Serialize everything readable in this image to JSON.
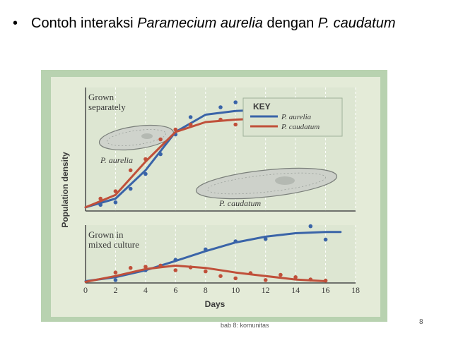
{
  "slide": {
    "bullet_glyph": "•",
    "title_prefix": "Contoh interaksi ",
    "title_species_a": "Paramecium aurelia",
    "title_middle": " dengan ",
    "title_species_b": "P. caudatum",
    "footer": "bab 8: komunitas",
    "page_number": "8"
  },
  "colors": {
    "panel_background": "#b8d2b0",
    "panel_inner": "#e4ebd8",
    "grid": "#ffffff",
    "aurelia": "#3a64a8",
    "caudatum": "#c0503a",
    "text": "#3a3a3a"
  },
  "chart_data": [
    {
      "type": "line",
      "panel_label": [
        "Grown",
        "separately"
      ],
      "ylabel": "Population density",
      "xlim": [
        0,
        18
      ],
      "legend": {
        "title": "KEY",
        "placement": "top-right",
        "entries": [
          "P. aurelia",
          "P. caudatum"
        ]
      },
      "image_labels": [
        "P. aurelia",
        "P. caudatum"
      ],
      "series": [
        {
          "name": "P. aurelia",
          "color": "#3a64a8",
          "x": [
            0,
            2,
            4,
            6,
            8,
            10,
            12,
            14,
            16,
            17
          ],
          "y": [
            0.03,
            0.1,
            0.33,
            0.64,
            0.78,
            0.81,
            0.82,
            0.82,
            0.82,
            0.82
          ],
          "points": [
            [
              1,
              0.05
            ],
            [
              2,
              0.07
            ],
            [
              3,
              0.18
            ],
            [
              4,
              0.3
            ],
            [
              5,
              0.46
            ],
            [
              6,
              0.62
            ],
            [
              7,
              0.76
            ],
            [
              9,
              0.84
            ],
            [
              10,
              0.88
            ],
            [
              11,
              0.8
            ],
            [
              13,
              0.86
            ],
            [
              14,
              0.9
            ],
            [
              15,
              0.86
            ],
            [
              16,
              0.88
            ]
          ]
        },
        {
          "name": "P. caudatum",
          "color": "#c0503a",
          "x": [
            0,
            2,
            4,
            6,
            8,
            10,
            12,
            14,
            16,
            17
          ],
          "y": [
            0.03,
            0.13,
            0.4,
            0.64,
            0.72,
            0.74,
            0.75,
            0.75,
            0.75,
            0.75
          ],
          "points": [
            [
              1,
              0.1
            ],
            [
              2,
              0.16
            ],
            [
              3,
              0.33
            ],
            [
              4,
              0.42
            ],
            [
              5,
              0.58
            ],
            [
              6,
              0.66
            ],
            [
              7,
              0.7
            ],
            [
              9,
              0.74
            ],
            [
              10,
              0.7
            ],
            [
              11,
              0.72
            ],
            [
              12,
              0.76
            ],
            [
              13,
              0.7
            ],
            [
              14,
              0.74
            ],
            [
              15,
              0.76
            ],
            [
              16,
              0.72
            ]
          ]
        }
      ]
    },
    {
      "type": "line",
      "panel_label": [
        "Grown in",
        "mixed culture"
      ],
      "xlabel": "Days",
      "xlim": [
        0,
        18
      ],
      "x_ticks": [
        0,
        2,
        4,
        6,
        8,
        10,
        12,
        14,
        16,
        18
      ],
      "series": [
        {
          "name": "P. aurelia",
          "color": "#3a64a8",
          "x": [
            0,
            2,
            4,
            6,
            8,
            10,
            12,
            14,
            16,
            17
          ],
          "y": [
            0.03,
            0.1,
            0.22,
            0.38,
            0.55,
            0.7,
            0.8,
            0.86,
            0.88,
            0.88
          ],
          "points": [
            [
              2,
              0.05
            ],
            [
              4,
              0.22
            ],
            [
              6,
              0.4
            ],
            [
              8,
              0.58
            ],
            [
              10,
              0.72
            ],
            [
              12,
              0.76
            ],
            [
              15,
              0.98
            ],
            [
              16,
              0.75
            ]
          ]
        },
        {
          "name": "P. caudatum",
          "color": "#c0503a",
          "x": [
            0,
            2,
            4,
            6,
            8,
            10,
            12,
            14,
            16
          ],
          "y": [
            0.02,
            0.12,
            0.24,
            0.3,
            0.26,
            0.18,
            0.12,
            0.06,
            0.03
          ],
          "points": [
            [
              2,
              0.18
            ],
            [
              3,
              0.26
            ],
            [
              4,
              0.28
            ],
            [
              5,
              0.3
            ],
            [
              6,
              0.22
            ],
            [
              7,
              0.27
            ],
            [
              8,
              0.2
            ],
            [
              9,
              0.12
            ],
            [
              10,
              0.08
            ],
            [
              11,
              0.17
            ],
            [
              12,
              0.05
            ],
            [
              13,
              0.14
            ],
            [
              14,
              0.1
            ],
            [
              15,
              0.06
            ],
            [
              16,
              0.04
            ]
          ]
        }
      ]
    }
  ]
}
